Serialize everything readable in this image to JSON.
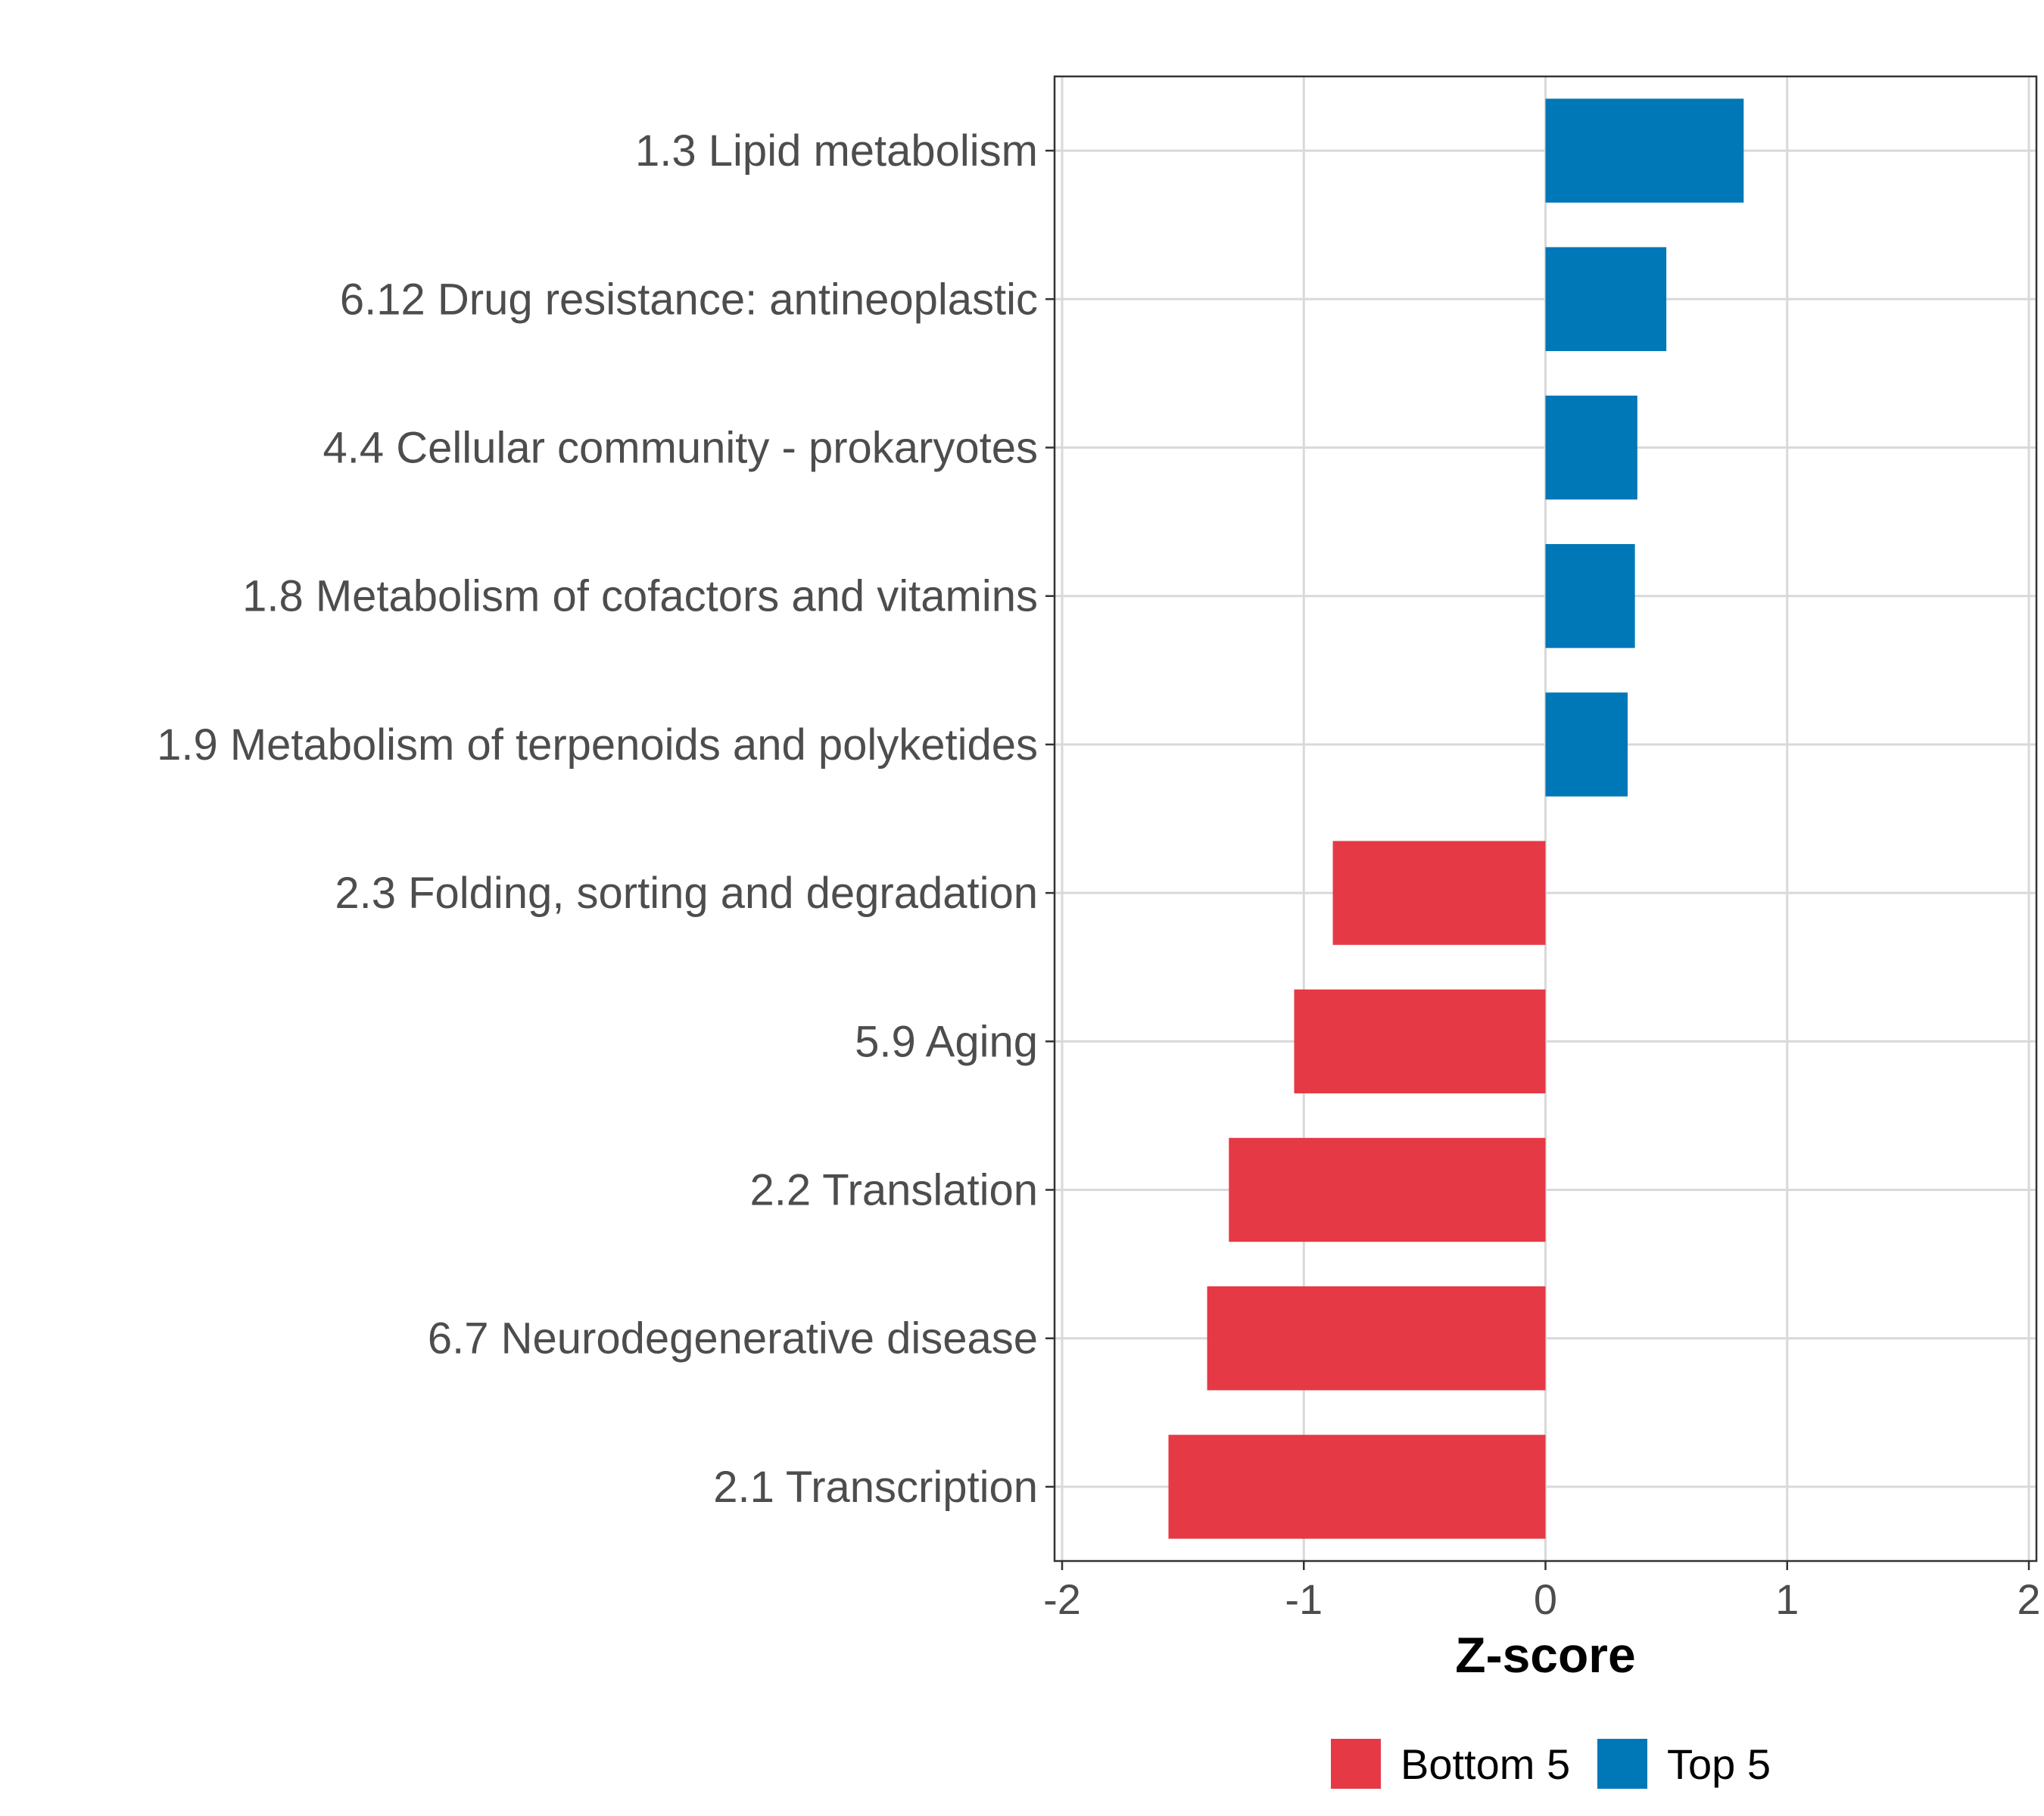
{
  "chart_data": {
    "type": "bar",
    "orientation": "horizontal",
    "title": "",
    "xlabel": "Z-score",
    "ylabel": "",
    "xlim": [
      -2,
      2
    ],
    "xticks": [
      "-2",
      "-1",
      "0",
      "1",
      "2"
    ],
    "grid": true,
    "categories": [
      "1.3 Lipid metabolism",
      "6.12 Drug resistance: antineoplastic",
      "4.4 Cellular community - prokaryotes",
      "1.8 Metabolism of cofactors and vitamins",
      "1.9 Metabolism of terpenoids and polyketides",
      "2.3 Folding, sorting and degradation",
      "5.9 Aging",
      "2.2 Translation",
      "6.7 Neurodegenerative disease",
      "2.1 Transcription"
    ],
    "values": [
      0.82,
      0.5,
      0.38,
      0.37,
      0.34,
      -0.88,
      -1.04,
      -1.31,
      -1.4,
      -1.56
    ],
    "groups": [
      "Top 5",
      "Top 5",
      "Top 5",
      "Top 5",
      "Top 5",
      "Bottom 5",
      "Bottom 5",
      "Bottom 5",
      "Bottom 5",
      "Bottom 5"
    ],
    "legend": {
      "position": "bottom",
      "items": [
        {
          "label": "Bottom 5",
          "color": "#e63946"
        },
        {
          "label": "Top 5",
          "color": "#0077b6"
        }
      ]
    }
  }
}
